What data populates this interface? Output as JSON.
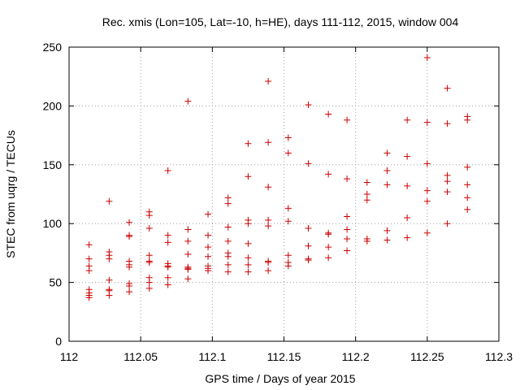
{
  "chart_data": {
    "type": "scatter",
    "title": "Rec. xmis (Lon=105, Lat=-10, h=HE), days 111-112, 2015, window 004",
    "xlabel": "GPS time / Days of year 2015",
    "ylabel": "STEC from uqrg / TECUs",
    "xlim": [
      112,
      112.3
    ],
    "ylim": [
      0,
      250
    ],
    "x_ticks": [
      112,
      112.05,
      112.1,
      112.15,
      112.2,
      112.25,
      112.3
    ],
    "x_tick_labels": [
      "112",
      "112.05",
      "112.1",
      "112.15",
      "112.2",
      "112.25",
      "112.3"
    ],
    "y_ticks": [
      0,
      50,
      100,
      150,
      200,
      250
    ],
    "y_tick_labels": [
      "0",
      "50",
      "100",
      "150",
      "200",
      "250"
    ],
    "grid": true,
    "marker": "+",
    "color": "#cc0000",
    "series": [
      {
        "name": "STEC",
        "points": [
          [
            112.014,
            82
          ],
          [
            112.014,
            70
          ],
          [
            112.014,
            64
          ],
          [
            112.014,
            60
          ],
          [
            112.014,
            44
          ],
          [
            112.014,
            41
          ],
          [
            112.014,
            39
          ],
          [
            112.014,
            37
          ],
          [
            112.028,
            119
          ],
          [
            112.028,
            76
          ],
          [
            112.028,
            73
          ],
          [
            112.028,
            70
          ],
          [
            112.028,
            52
          ],
          [
            112.028,
            44
          ],
          [
            112.028,
            43
          ],
          [
            112.028,
            39
          ],
          [
            112.042,
            101
          ],
          [
            112.042,
            90
          ],
          [
            112.042,
            89
          ],
          [
            112.042,
            68
          ],
          [
            112.042,
            65
          ],
          [
            112.042,
            63
          ],
          [
            112.042,
            49
          ],
          [
            112.042,
            47
          ],
          [
            112.042,
            42
          ],
          [
            112.056,
            110
          ],
          [
            112.056,
            107
          ],
          [
            112.056,
            96
          ],
          [
            112.056,
            73
          ],
          [
            112.056,
            68
          ],
          [
            112.056,
            67
          ],
          [
            112.056,
            54
          ],
          [
            112.056,
            50
          ],
          [
            112.056,
            45
          ],
          [
            112.069,
            145
          ],
          [
            112.069,
            90
          ],
          [
            112.069,
            84
          ],
          [
            112.069,
            66
          ],
          [
            112.069,
            64
          ],
          [
            112.069,
            63
          ],
          [
            112.069,
            54
          ],
          [
            112.069,
            48
          ],
          [
            112.083,
            204
          ],
          [
            112.083,
            95
          ],
          [
            112.083,
            85
          ],
          [
            112.083,
            74
          ],
          [
            112.083,
            63
          ],
          [
            112.083,
            62
          ],
          [
            112.083,
            61
          ],
          [
            112.083,
            53
          ],
          [
            112.097,
            108
          ],
          [
            112.097,
            90
          ],
          [
            112.097,
            80
          ],
          [
            112.097,
            72
          ],
          [
            112.097,
            64
          ],
          [
            112.097,
            62
          ],
          [
            112.097,
            60
          ],
          [
            112.111,
            122
          ],
          [
            112.111,
            117
          ],
          [
            112.111,
            97
          ],
          [
            112.111,
            85
          ],
          [
            112.111,
            75
          ],
          [
            112.111,
            72
          ],
          [
            112.111,
            65
          ],
          [
            112.111,
            59
          ],
          [
            112.125,
            168
          ],
          [
            112.125,
            140
          ],
          [
            112.125,
            103
          ],
          [
            112.125,
            100
          ],
          [
            112.125,
            83
          ],
          [
            112.125,
            71
          ],
          [
            112.125,
            65
          ],
          [
            112.125,
            59
          ],
          [
            112.139,
            221
          ],
          [
            112.139,
            169
          ],
          [
            112.139,
            131
          ],
          [
            112.139,
            103
          ],
          [
            112.139,
            98
          ],
          [
            112.139,
            68
          ],
          [
            112.139,
            67
          ],
          [
            112.139,
            60
          ],
          [
            112.153,
            173
          ],
          [
            112.153,
            160
          ],
          [
            112.153,
            113
          ],
          [
            112.153,
            102
          ],
          [
            112.153,
            73
          ],
          [
            112.153,
            67
          ],
          [
            112.153,
            64
          ],
          [
            112.167,
            201
          ],
          [
            112.167,
            151
          ],
          [
            112.167,
            96
          ],
          [
            112.167,
            81
          ],
          [
            112.167,
            70
          ],
          [
            112.167,
            69
          ],
          [
            112.181,
            193
          ],
          [
            112.181,
            142
          ],
          [
            112.181,
            92
          ],
          [
            112.181,
            91
          ],
          [
            112.181,
            80
          ],
          [
            112.181,
            71
          ],
          [
            112.194,
            188
          ],
          [
            112.194,
            138
          ],
          [
            112.194,
            106
          ],
          [
            112.194,
            95
          ],
          [
            112.194,
            87
          ],
          [
            112.194,
            77
          ],
          [
            112.208,
            135
          ],
          [
            112.208,
            125
          ],
          [
            112.208,
            120
          ],
          [
            112.208,
            87
          ],
          [
            112.208,
            85
          ],
          [
            112.222,
            160
          ],
          [
            112.222,
            145
          ],
          [
            112.222,
            133
          ],
          [
            112.222,
            94
          ],
          [
            112.222,
            86
          ],
          [
            112.236,
            188
          ],
          [
            112.236,
            157
          ],
          [
            112.236,
            132
          ],
          [
            112.236,
            105
          ],
          [
            112.236,
            88
          ],
          [
            112.25,
            241
          ],
          [
            112.25,
            186
          ],
          [
            112.25,
            151
          ],
          [
            112.25,
            128
          ],
          [
            112.25,
            119
          ],
          [
            112.25,
            92
          ],
          [
            112.264,
            215
          ],
          [
            112.264,
            185
          ],
          [
            112.264,
            141
          ],
          [
            112.264,
            136
          ],
          [
            112.264,
            127
          ],
          [
            112.264,
            100
          ],
          [
            112.278,
            191
          ],
          [
            112.278,
            188
          ],
          [
            112.278,
            148
          ],
          [
            112.278,
            133
          ],
          [
            112.278,
            122
          ],
          [
            112.278,
            112
          ]
        ]
      }
    ]
  }
}
